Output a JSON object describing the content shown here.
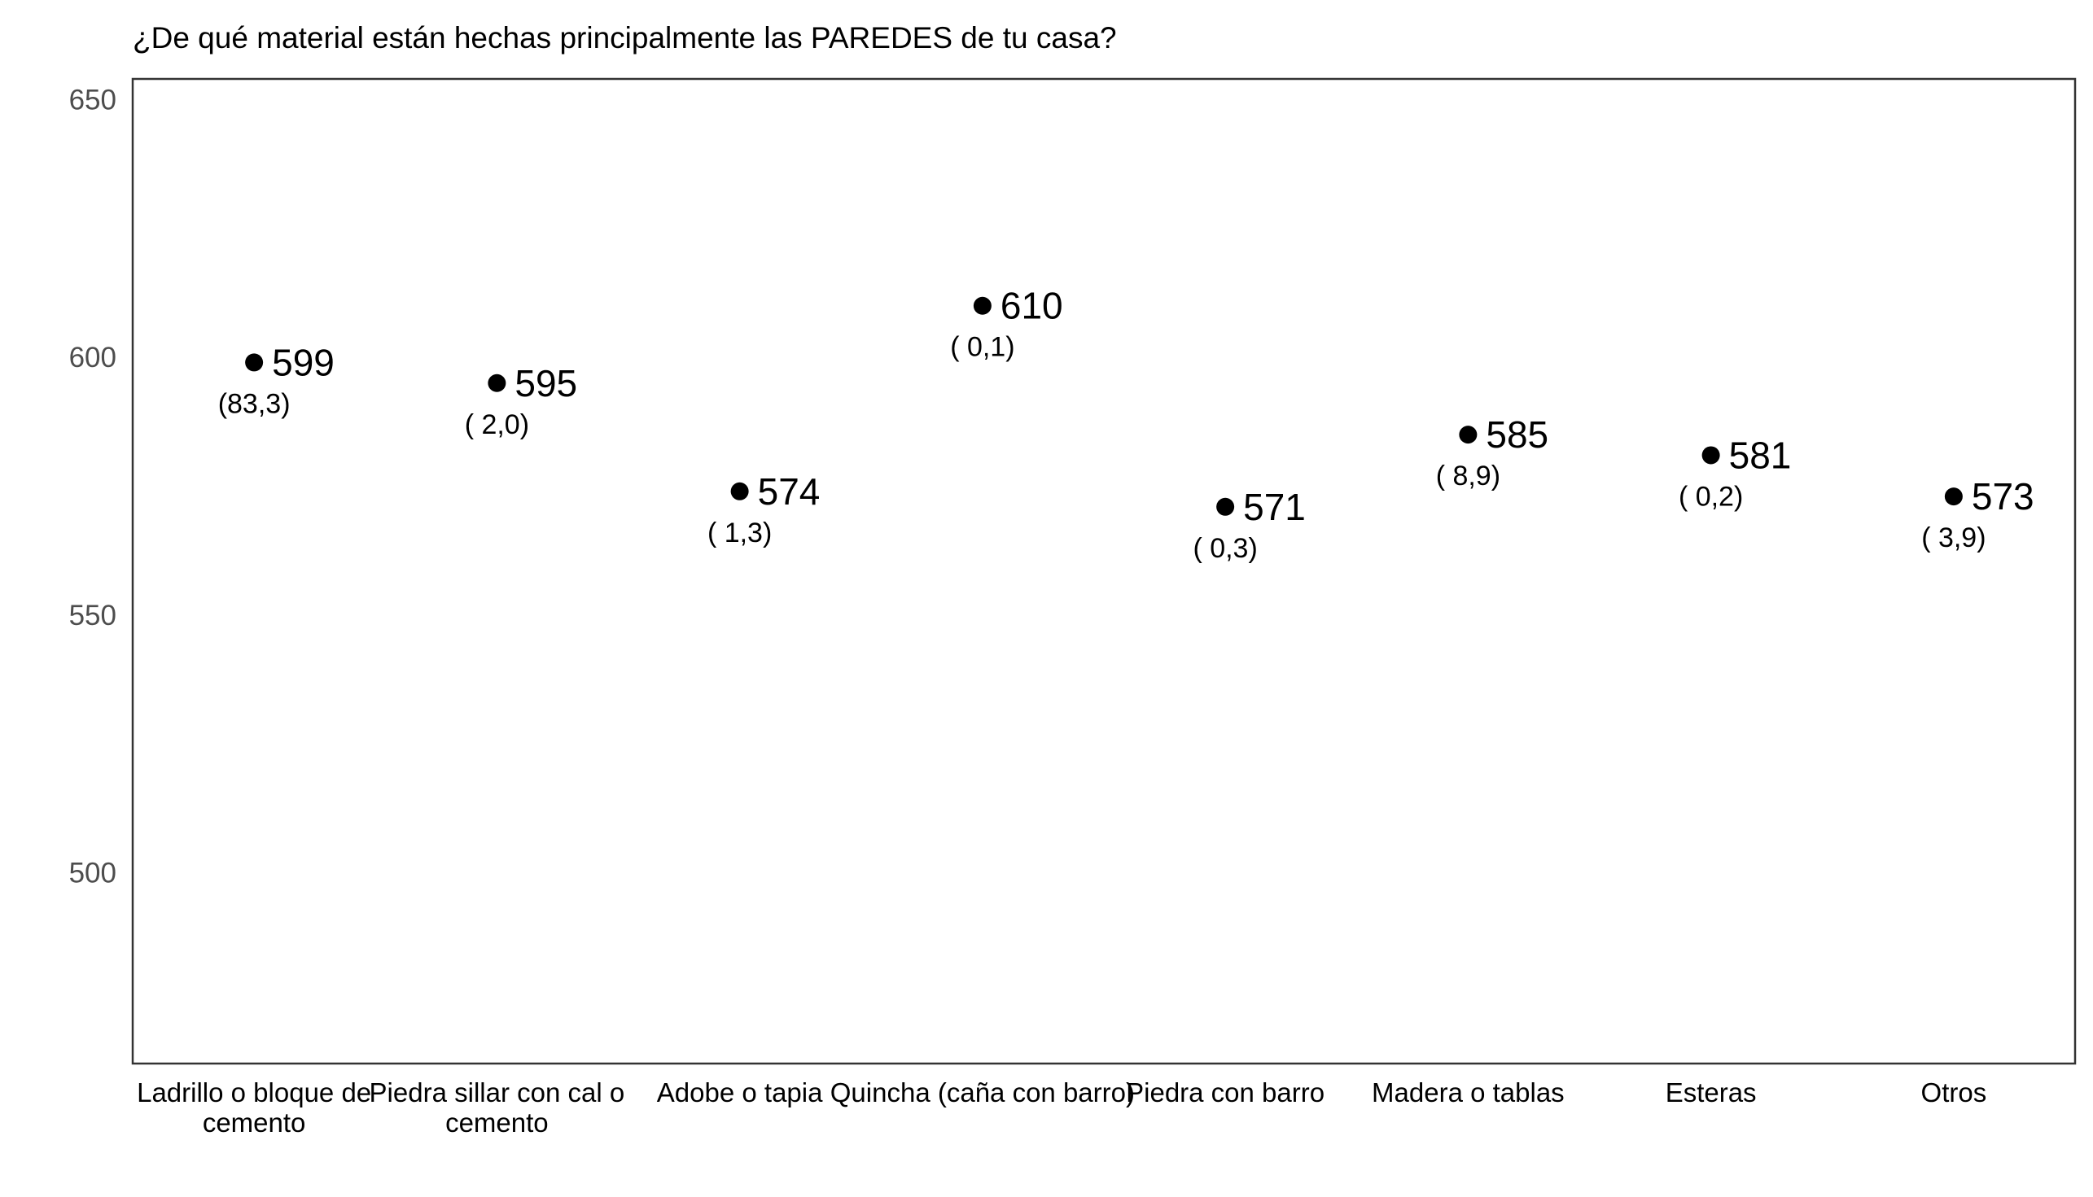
{
  "chart_data": {
    "type": "scatter",
    "title": "¿De qué material están hechas principalmente las PAREDES de tu casa?",
    "xlabel": "",
    "ylabel": "",
    "ylim": [
      463,
      654
    ],
    "yticks": [
      "650",
      "600",
      "550",
      "500"
    ],
    "ytick_values": [
      650,
      600,
      550,
      500
    ],
    "categories": [
      [
        "Ladrillo o bloque de",
        "cemento"
      ],
      [
        "Piedra sillar con cal o",
        "cemento"
      ],
      [
        "Adobe o tapia"
      ],
      [
        "Quincha (caña con barro)"
      ],
      [
        "Piedra con barro"
      ],
      [
        "Madera o tablas"
      ],
      [
        "Esteras"
      ],
      [
        "Otros"
      ]
    ],
    "values": [
      599,
      595,
      574,
      610,
      571,
      585,
      581,
      573
    ],
    "value_labels": [
      "599",
      "595",
      "574",
      "610",
      "571",
      "585",
      "581",
      "573"
    ],
    "percent_labels": [
      "(83,3)",
      "( 2,0)",
      "( 1,3)",
      "( 0,1)",
      "( 0,3)",
      "( 8,9)",
      "( 0,2)",
      "( 3,9)"
    ],
    "grid": false,
    "colors": {
      "points": "#000000",
      "axis_text": "#4d4d4d",
      "frame": "#333333"
    }
  }
}
